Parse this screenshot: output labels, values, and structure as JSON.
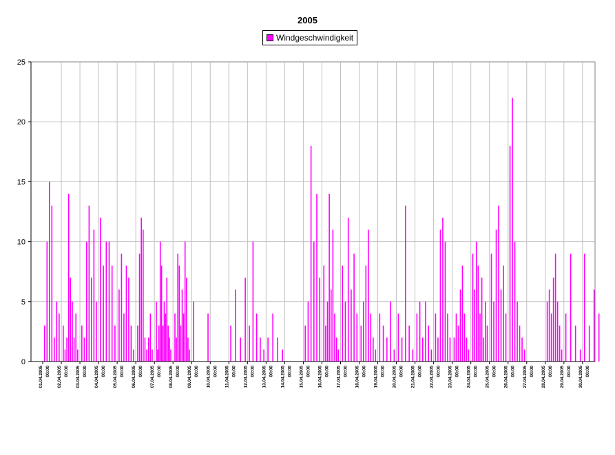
{
  "chart_data": {
    "type": "bar",
    "title": "2005",
    "series": [
      {
        "name": "Windgeschwindigkeit",
        "color": "#ff00ff"
      }
    ],
    "ylim": [
      0,
      25
    ],
    "yticks": [
      "0",
      "5",
      "10",
      "15",
      "20",
      "25"
    ],
    "grid": true,
    "legend_position": "top",
    "xtick_labels": [
      "01.04.2005",
      "02.04.2005",
      "03.04.2005",
      "04.04.2005",
      "05.04.2005",
      "06.04.2005",
      "07.04.2005",
      "08.04.2005",
      "09.04.2005",
      "10.04.2005",
      "11.04.2005",
      "12.04.2005",
      "13.04.2005",
      "14.04.2005",
      "15.04.2005",
      "16.04.2005",
      "17.04.2005",
      "18.04.2005",
      "19.04.2005",
      "20.04.2005",
      "21.04.2005",
      "22.04.2005",
      "23.04.2005",
      "24.04.2005",
      "25.04.2005",
      "26.04.2005",
      "27.04.2005",
      "28.04.2005",
      "29.04.2005",
      "30.04.2005"
    ],
    "xtick_time": "00:00",
    "values": [
      [
        3,
        10,
        15,
        13,
        2,
        5,
        4
      ],
      [
        3,
        1,
        2,
        14,
        7,
        5,
        2,
        4,
        1
      ],
      [
        3,
        2,
        10,
        13,
        7,
        11,
        5
      ],
      [
        12,
        8,
        10,
        10,
        8,
        3
      ],
      [
        6,
        9,
        4,
        8,
        7,
        3,
        1
      ],
      [
        3,
        9,
        12,
        11,
        2,
        1,
        2,
        4,
        1
      ],
      [
        5,
        1,
        3,
        10,
        8,
        3,
        5,
        4,
        7,
        3,
        2,
        1
      ],
      [
        4,
        2,
        9,
        8,
        3,
        6,
        4,
        10,
        7,
        2,
        1
      ],
      [
        5,
        4
      ],
      [],
      [
        3,
        6,
        2,
        7
      ],
      [
        3,
        10,
        4,
        2,
        1
      ],
      [
        2,
        4,
        2,
        1
      ],
      [],
      [
        3,
        5,
        18,
        10,
        14,
        7
      ],
      [
        8,
        3,
        5,
        14,
        6,
        11,
        4,
        2,
        1
      ],
      [
        8,
        5,
        12,
        6,
        9,
        4
      ],
      [
        3,
        5,
        8,
        11,
        4,
        2,
        1
      ],
      [
        4,
        3,
        2,
        5,
        1
      ],
      [
        4,
        2,
        13,
        3,
        1
      ],
      [
        4,
        5,
        2,
        5,
        3,
        1
      ],
      [
        4,
        2,
        11,
        12,
        10,
        4,
        2
      ],
      [
        2,
        4,
        3,
        6,
        8,
        4,
        2,
        1
      ],
      [
        9,
        6,
        10,
        8,
        4,
        7,
        2,
        5,
        3
      ],
      [
        9,
        5,
        11,
        13,
        6,
        8,
        4
      ],
      [
        18,
        22,
        10,
        5,
        3,
        2,
        1
      ],
      [],
      [
        5,
        6,
        4,
        7,
        9,
        5,
        3,
        1
      ],
      [
        4,
        9,
        3,
        1
      ],
      [
        9,
        3,
        6,
        4
      ]
    ]
  }
}
